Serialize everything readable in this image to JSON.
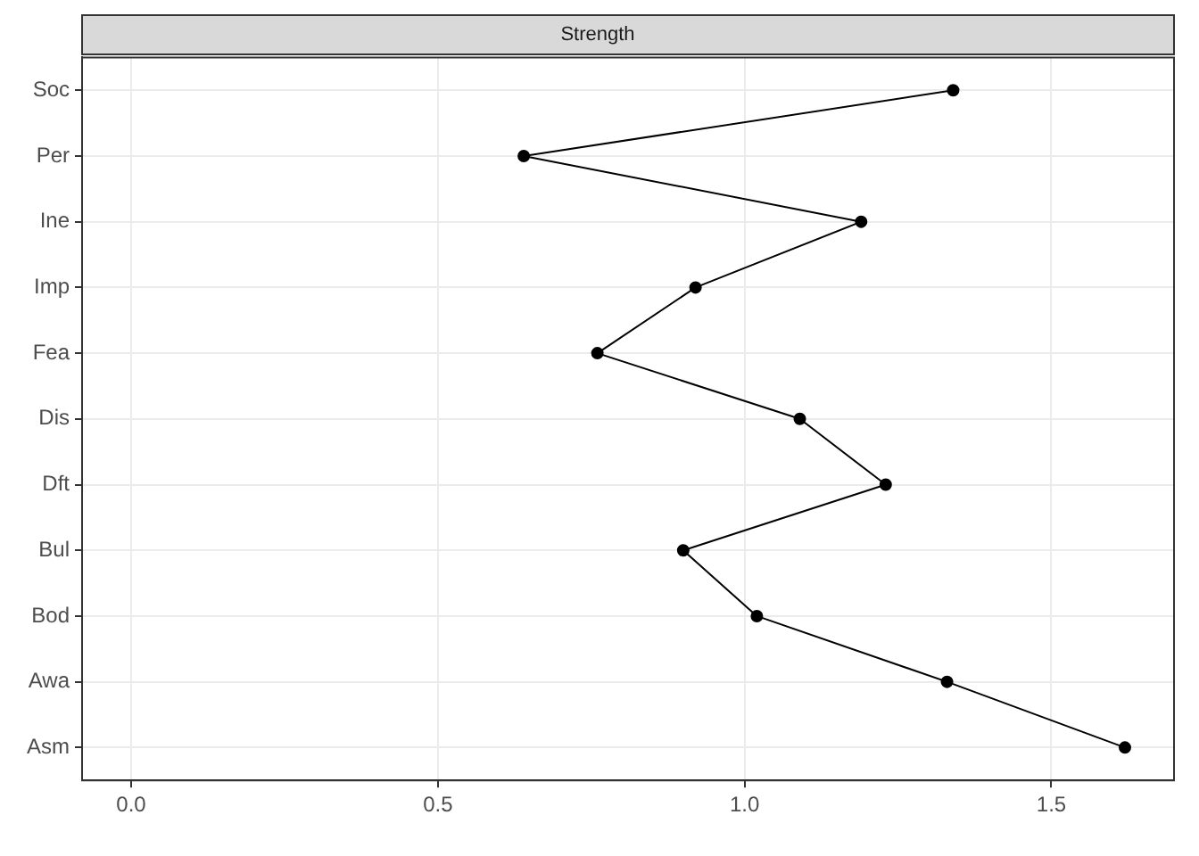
{
  "chart_data": {
    "type": "line",
    "orientation": "horizontal",
    "title": "Strength",
    "categories": [
      "Soc",
      "Per",
      "Ine",
      "Imp",
      "Fea",
      "Dis",
      "Dft",
      "Bul",
      "Bod",
      "Awa",
      "Asm"
    ],
    "values": [
      1.34,
      0.64,
      1.19,
      0.92,
      0.76,
      1.09,
      1.23,
      0.9,
      1.02,
      1.33,
      1.62
    ],
    "color": "#000000",
    "marker": "circle",
    "line_style": "solid",
    "xlim": [
      -0.08,
      1.7
    ],
    "xticks": [
      {
        "value": 0.0,
        "label": "0.0"
      },
      {
        "value": 0.5,
        "label": "0.5"
      },
      {
        "value": 1.0,
        "label": "1.0"
      },
      {
        "value": 1.5,
        "label": "1.5"
      }
    ],
    "grid": true
  }
}
